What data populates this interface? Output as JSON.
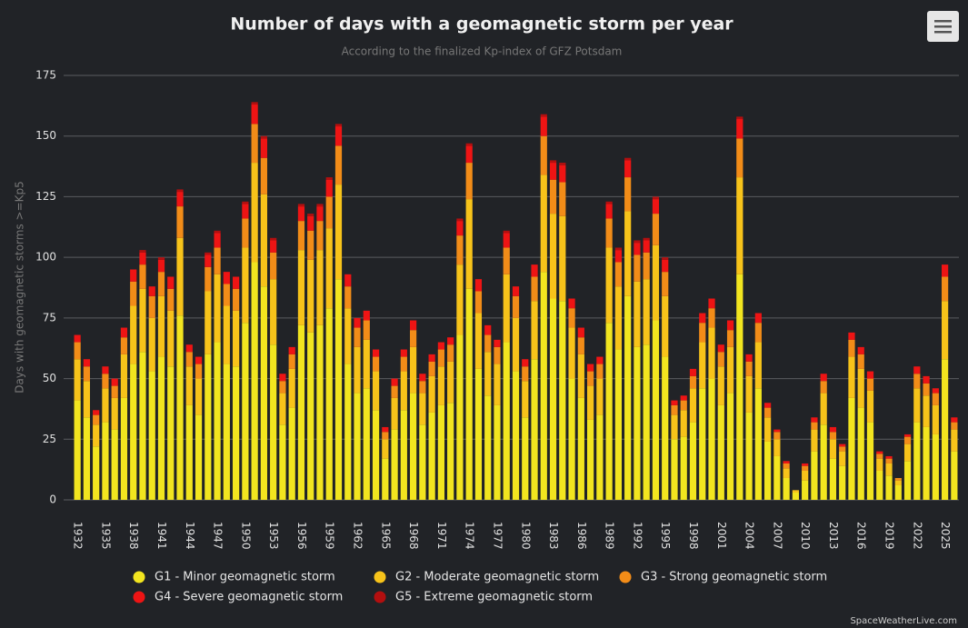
{
  "chart_data": {
    "type": "stacked_bar",
    "title": "Number of days with a geomagnetic storm per year",
    "subtitle": "According to the finalized Kp-index of GFZ Potsdam",
    "y_label": "Days with geomagnetic storms >=Kp5",
    "credit": "SpaceWeatherLive.com",
    "categories": [
      "1932",
      null,
      null,
      "1935",
      null,
      null,
      "1938",
      null,
      null,
      "1941",
      null,
      null,
      "1944",
      null,
      null,
      "1947",
      null,
      null,
      "1950",
      null,
      null,
      "1953",
      null,
      null,
      "1956",
      null,
      null,
      "1959",
      null,
      null,
      "1962",
      null,
      null,
      "1965",
      null,
      null,
      "1968",
      null,
      null,
      "1971",
      null,
      null,
      "1974",
      null,
      null,
      "1977",
      null,
      null,
      "1980",
      null,
      null,
      "1983",
      null,
      null,
      "1986",
      null,
      null,
      "1989",
      null,
      null,
      "1992",
      null,
      null,
      "1995",
      null,
      null,
      "1998",
      null,
      null,
      "2001",
      null,
      null,
      "2004",
      null,
      null,
      "2007",
      null,
      null,
      "2010",
      null,
      null,
      "2013",
      null,
      null,
      "2016",
      null,
      null,
      "2019",
      null,
      null,
      "2022",
      null,
      null,
      "2025",
      null
    ],
    "series": [
      {
        "name": "G1 - Minor geomagnetic storm",
        "color": "#f2e51f",
        "values": [
          41,
          34,
          22,
          32,
          29,
          42,
          56,
          61,
          53,
          59,
          55,
          76,
          39,
          35,
          60,
          65,
          56,
          55,
          73,
          98,
          88,
          64,
          31,
          38,
          72,
          69,
          72,
          79,
          91,
          56,
          44,
          46,
          37,
          17,
          29,
          37,
          44,
          31,
          36,
          39,
          40,
          68,
          87,
          54,
          43,
          39,
          65,
          53,
          34,
          58,
          94,
          83,
          82,
          50,
          42,
          33,
          35,
          73,
          62,
          84,
          63,
          64,
          74,
          59,
          25,
          26,
          32,
          46,
          50,
          39,
          44,
          93,
          36,
          46,
          24,
          18,
          9,
          3,
          8,
          20,
          31,
          17,
          14,
          42,
          38,
          32,
          12,
          10,
          6,
          16,
          32,
          30,
          27,
          58,
          20
        ]
      },
      {
        "name": "G2 - Moderate geomagnetic storm",
        "color": "#f7c31a",
        "values": [
          17,
          15,
          9,
          14,
          13,
          18,
          24,
          26,
          22,
          25,
          23,
          32,
          16,
          15,
          26,
          28,
          24,
          23,
          31,
          41,
          38,
          27,
          13,
          16,
          31,
          30,
          31,
          33,
          39,
          23,
          19,
          20,
          16,
          8,
          13,
          16,
          19,
          13,
          15,
          16,
          17,
          29,
          37,
          23,
          18,
          17,
          28,
          22,
          15,
          24,
          40,
          35,
          35,
          21,
          18,
          14,
          15,
          31,
          26,
          35,
          27,
          27,
          31,
          25,
          10,
          11,
          14,
          19,
          21,
          16,
          19,
          40,
          15,
          19,
          10,
          7,
          4,
          1,
          4,
          9,
          13,
          8,
          6,
          17,
          16,
          13,
          5,
          5,
          2,
          7,
          14,
          13,
          12,
          24,
          9
        ]
      },
      {
        "name": "G3 - Strong geomagnetic storm",
        "color": "#f28c18",
        "values": [
          7,
          6,
          4,
          6,
          5,
          7,
          10,
          10,
          9,
          10,
          9,
          13,
          6,
          6,
          10,
          11,
          9,
          9,
          12,
          16,
          15,
          11,
          5,
          6,
          12,
          12,
          12,
          13,
          16,
          9,
          8,
          8,
          6,
          3,
          5,
          6,
          7,
          5,
          6,
          7,
          7,
          12,
          15,
          9,
          7,
          7,
          11,
          9,
          6,
          10,
          16,
          14,
          14,
          8,
          7,
          6,
          6,
          12,
          10,
          14,
          11,
          11,
          13,
          10,
          4,
          4,
          5,
          8,
          8,
          6,
          7,
          16,
          6,
          8,
          4,
          3,
          2,
          0,
          2,
          3,
          5,
          3,
          2,
          7,
          6,
          5,
          2,
          2,
          1,
          3,
          6,
          5,
          5,
          10,
          3
        ]
      },
      {
        "name": "G4 - Severe geomagnetic storm",
        "color": "#ee1414",
        "values": [
          3,
          3,
          2,
          3,
          3,
          4,
          5,
          5,
          4,
          5,
          5,
          6,
          3,
          3,
          5,
          6,
          5,
          5,
          6,
          8,
          8,
          5,
          3,
          3,
          6,
          6,
          6,
          7,
          8,
          5,
          4,
          4,
          3,
          2,
          3,
          3,
          4,
          3,
          3,
          3,
          3,
          6,
          7,
          5,
          4,
          3,
          6,
          4,
          3,
          5,
          8,
          7,
          7,
          4,
          4,
          3,
          3,
          6,
          5,
          7,
          5,
          5,
          6,
          5,
          2,
          2,
          3,
          4,
          4,
          3,
          4,
          8,
          3,
          4,
          2,
          1,
          1,
          0,
          1,
          2,
          3,
          2,
          1,
          3,
          3,
          3,
          1,
          1,
          0,
          1,
          3,
          3,
          2,
          5,
          2
        ]
      },
      {
        "name": "G5 - Extreme geomagnetic storm",
        "color": "#b30f0f",
        "values": [
          0,
          0,
          0,
          0,
          0,
          0,
          0,
          1,
          0,
          1,
          0,
          1,
          0,
          0,
          1,
          1,
          0,
          0,
          1,
          1,
          1,
          1,
          0,
          0,
          1,
          1,
          1,
          1,
          1,
          0,
          0,
          0,
          0,
          0,
          0,
          0,
          0,
          0,
          0,
          0,
          0,
          1,
          1,
          0,
          0,
          0,
          1,
          0,
          0,
          0,
          1,
          1,
          1,
          0,
          0,
          0,
          0,
          1,
          1,
          1,
          1,
          1,
          1,
          1,
          0,
          0,
          0,
          0,
          0,
          0,
          0,
          1,
          0,
          0,
          0,
          0,
          0,
          0,
          0,
          0,
          0,
          0,
          0,
          0,
          0,
          0,
          0,
          0,
          0,
          0,
          0,
          0,
          0,
          0,
          0
        ]
      }
    ],
    "ylim": [
      0,
      175
    ],
    "yticks": [
      0,
      25,
      50,
      75,
      100,
      125,
      150,
      175
    ],
    "grid": true
  }
}
